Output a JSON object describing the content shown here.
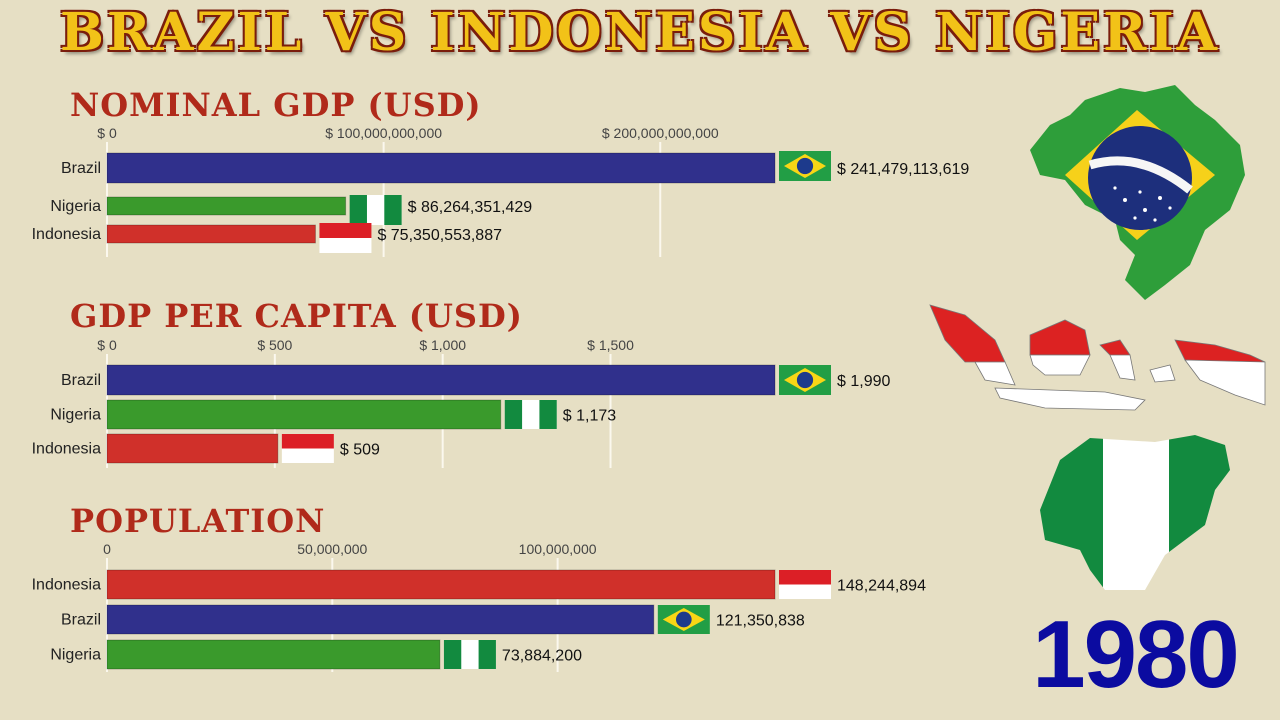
{
  "title": "BRAZIL VS INDONESIA VS NIGERIA",
  "year": "1980",
  "colors": {
    "Brazil": "#30308c",
    "Indonesia": "#d0302a",
    "Nigeria": "#3a9a2c",
    "title_fill": "#f2c218",
    "section_title": "#b02a1a",
    "year": "#0b0ba0"
  },
  "icons": [
    "brazil-flag-icon",
    "indonesia-flag-icon",
    "nigeria-flag-icon",
    "brazil-map-icon",
    "indonesia-map-icon",
    "nigeria-map-icon"
  ],
  "chart_data": [
    {
      "type": "bar",
      "title": "NOMINAL GDP (USD)",
      "xlim": [
        0,
        241479113619
      ],
      "ticks": [
        0,
        100000000000,
        200000000000
      ],
      "tick_labels": [
        "$ 0",
        "$ 100,000,000,000",
        "$ 200,000,000,000"
      ],
      "categories": [
        "Brazil",
        "Nigeria",
        "Indonesia"
      ],
      "values": [
        241479113619,
        86264351429,
        75350553887
      ],
      "value_labels": [
        "$ 241,479,113,619",
        "$ 86,264,351,429",
        "$ 75,350,553,887"
      ]
    },
    {
      "type": "bar",
      "title": "GDP PER CAPITA (USD)",
      "xlim": [
        0,
        1990
      ],
      "ticks": [
        0,
        500,
        1000,
        1500
      ],
      "tick_labels": [
        "$ 0",
        "$ 500",
        "$ 1,000",
        "$ 1,500"
      ],
      "categories": [
        "Brazil",
        "Nigeria",
        "Indonesia"
      ],
      "values": [
        1990,
        1173,
        509
      ],
      "value_labels": [
        "$ 1,990",
        "$ 1,173",
        "$ 509"
      ]
    },
    {
      "type": "bar",
      "title": "POPULATION",
      "xlim": [
        0,
        148244894
      ],
      "ticks": [
        0,
        50000000,
        100000000
      ],
      "tick_labels": [
        "0",
        "50,000,000",
        "100,000,000"
      ],
      "categories": [
        "Indonesia",
        "Brazil",
        "Nigeria"
      ],
      "values": [
        148244894,
        121350838,
        73884200
      ],
      "value_labels": [
        "148,244,894",
        "121,350,838",
        "73,884,200"
      ]
    }
  ]
}
